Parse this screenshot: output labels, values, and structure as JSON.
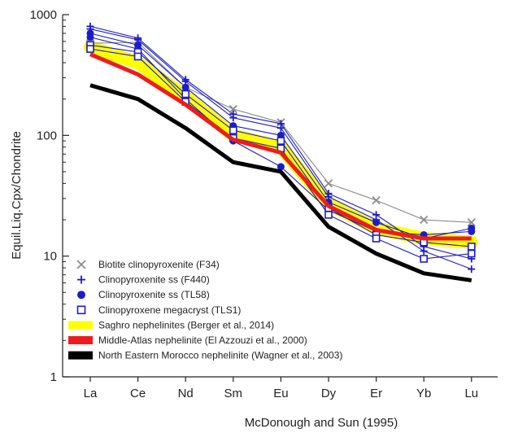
{
  "chart_data": {
    "type": "line",
    "title": "",
    "ylabel": "Equil.Liq.Cpx/Chondrite",
    "xlabel": "McDonough and Sun (1995)",
    "yscale": "log",
    "ylim": [
      1,
      1000
    ],
    "yticks": [
      {
        "value": 1,
        "label": "1"
      },
      {
        "value": 10,
        "label": "10"
      },
      {
        "value": 100,
        "label": "100"
      },
      {
        "value": 1000,
        "label": "1000"
      }
    ],
    "categories": [
      "La",
      "Ce",
      "Nd",
      "Sm",
      "Eu",
      "Dy",
      "Er",
      "Yb",
      "Lu"
    ],
    "grid": false,
    "legend_position": "bottom-left",
    "colors": {
      "biotite": "#8c8c8c",
      "clinopyroxenite": "#1c1ccc",
      "saghro": "#ffff00",
      "middle_atlas": "#ee1c1c",
      "north_eastern": "#000000"
    },
    "series": [
      {
        "name": "Biotite clinopyroxenite (F34)",
        "marker": "x",
        "color": "#8c8c8c",
        "values": [
          580,
          590,
          250,
          165,
          128,
          40,
          29,
          20,
          19
        ]
      },
      {
        "name": "Clinopyroxenite ss (F440)",
        "marker": "plus",
        "color": "#1c1ccc",
        "values": [
          800,
          640,
          290,
          150,
          125,
          33,
          22,
          12,
          9.5
        ]
      },
      {
        "name": "Clinopyroxenite ss (F440)",
        "marker": "plus",
        "color": "#1c1ccc",
        "values": [
          760,
          620,
          280,
          140,
          115,
          31,
          20,
          11,
          7.8
        ]
      },
      {
        "name": "Clinopyroxenite ss (TL58)",
        "marker": "dot",
        "color": "#1c1ccc",
        "values": [
          700,
          560,
          250,
          120,
          100,
          28,
          19,
          14,
          17
        ]
      },
      {
        "name": "Clinopyroxenite ss (TL58)",
        "marker": "dot",
        "color": "#1c1ccc",
        "values": [
          650,
          520,
          200,
          90,
          55,
          24,
          16,
          15,
          16
        ]
      },
      {
        "name": "Clinopyroxene megacryst (TLS1)",
        "marker": "square",
        "color": "#1c1ccc",
        "values": [
          560,
          490,
          220,
          110,
          90,
          25,
          15,
          13,
          12
        ]
      },
      {
        "name": "Clinopyroxene megacryst (TLS1)",
        "marker": "square",
        "color": "#1c1ccc",
        "values": [
          520,
          450,
          190,
          95,
          78,
          22,
          14,
          9.5,
          10.5
        ]
      },
      {
        "name": "Saghro  nephelinites (Berger et al., 2014)",
        "marker": "band",
        "color": "#ffff00",
        "values": [
          540,
          400,
          210,
          100,
          80,
          27,
          17,
          14,
          13
        ]
      },
      {
        "name": "Middle-Atlas  nephelinite (El Azzouzi et al., 2000)",
        "marker": "thick",
        "color": "#ee1c1c",
        "values": [
          470,
          320,
          180,
          92,
          72,
          26,
          16.5,
          14,
          14
        ]
      },
      {
        "name": "North Eastern Morocco nephelinite (Wagner et al., 2003)",
        "marker": "thick",
        "color": "#000000",
        "values": [
          260,
          200,
          115,
          60,
          50,
          17.5,
          10.5,
          7.2,
          6.3
        ]
      }
    ],
    "legend": [
      {
        "label": "Biotite clinopyroxenite (F34)",
        "symbol": "x",
        "color": "#8c8c8c"
      },
      {
        "label": "Clinopyroxenite ss (F440)",
        "symbol": "plus",
        "color": "#1c1ccc"
      },
      {
        "label": "Clinopyroxenite ss (TL58)",
        "symbol": "dot",
        "color": "#1c1ccc"
      },
      {
        "label": "Clinopyroxene megacryst (TLS1)",
        "symbol": "square",
        "color": "#1c1ccc"
      },
      {
        "label": "Saghro  nephelinites (Berger et al., 2014)",
        "symbol": "band",
        "color": "#ffff00"
      },
      {
        "label": "Middle-Atlas  nephelinite (El Azzouzi et al., 2000)",
        "symbol": "band",
        "color": "#ee1c1c"
      },
      {
        "label": "North Eastern Morocco nephelinite (Wagner et al., 2003)",
        "symbol": "band",
        "color": "#000000"
      }
    ]
  }
}
